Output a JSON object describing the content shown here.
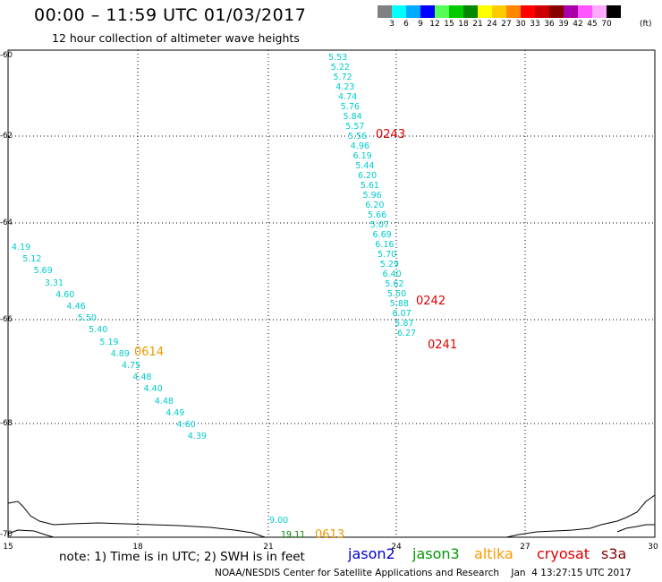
{
  "header": {
    "title": "00:00 – 11:59 UTC 01/03/2017",
    "subtitle": "12 hour collection of altimeter wave heights"
  },
  "colorbar": {
    "unit": "(ft)",
    "ticks": [
      "3",
      "6",
      "9",
      "12",
      "15",
      "18",
      "21",
      "24",
      "27",
      "30",
      "33",
      "36",
      "39",
      "42",
      "45",
      "70"
    ],
    "colors": [
      "#808080",
      "#00ffff",
      "#00aaff",
      "#0000ff",
      "#55ff55",
      "#00cc00",
      "#008800",
      "#ffff00",
      "#ffcc00",
      "#ff8800",
      "#ff0000",
      "#cc0000",
      "#880000",
      "#aa00aa",
      "#ff55ff",
      "#ffaaff",
      "#000000"
    ]
  },
  "map": {
    "lat_labels": [
      "-60",
      "-62",
      "-64",
      "-66",
      "-68",
      "-70"
    ],
    "lon_labels": [
      "15",
      "18",
      "21",
      "24",
      "27",
      "30"
    ],
    "track_east": [
      "5.53",
      "5.22",
      "5.72",
      "4.23",
      "4.74",
      "5.76",
      "5.84",
      "5.57",
      "5.56",
      "4.96",
      "6.19",
      "5.44",
      "6.20",
      "5.61",
      "5.96",
      "6.20",
      "5.66",
      "5.07",
      "6.69",
      "6.16",
      "5.70",
      "5.29",
      "6.40",
      "5.62",
      "5.50",
      "5.88",
      "6.07",
      "5.87",
      "6.27"
    ],
    "track_west": [
      "4.19",
      "5.12",
      "5.69",
      "3.31",
      "4.60",
      "4.46",
      "5.50",
      "5.40",
      "5.19",
      "4.89",
      "4.75",
      "4.48",
      "4.40",
      "4.48",
      "4.49",
      "4.60",
      "4.39"
    ],
    "track_bottom": [
      "9.00",
      "19.11"
    ],
    "time_labels": [
      {
        "text": "0243",
        "color": "#dd0000"
      },
      {
        "text": "0242",
        "color": "#dd0000"
      },
      {
        "text": "0241",
        "color": "#dd0000"
      },
      {
        "text": "0614",
        "color": "#ee9900"
      },
      {
        "text": "0613",
        "color": "#ee9900"
      }
    ]
  },
  "footer": {
    "note": "note: 1) Time is in UTC; 2) SWH is in feet",
    "satellites": [
      {
        "name": "jason2",
        "color": "#0000cc"
      },
      {
        "name": "jason3",
        "color": "#009900"
      },
      {
        "name": "altika",
        "color": "#ff9900"
      },
      {
        "name": "cryosat",
        "color": "#dd0000"
      },
      {
        "name": "s3a",
        "color": "#880000"
      }
    ],
    "credit": "NOAA/NESDIS Center for Satellite Applications and Research    Jan  4 13:27:15 UTC 2017"
  }
}
